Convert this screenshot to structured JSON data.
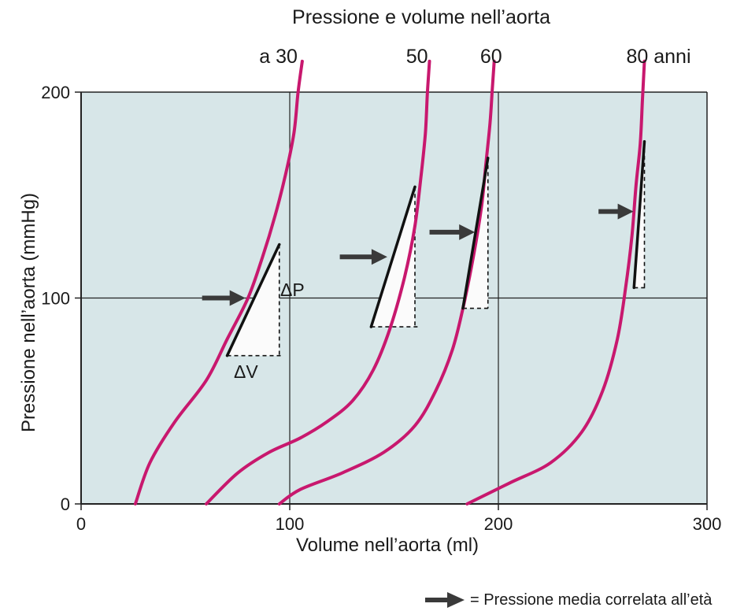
{
  "chart_data": {
    "type": "line",
    "title": "Pressione e volume nell’aorta",
    "xlabel": "Volume nell’aorta (ml)",
    "ylabel": "Pressione nell’aorta (mmHg)",
    "xlim": [
      0,
      300
    ],
    "ylim": [
      0,
      200
    ],
    "x_ticks": [
      0,
      100,
      200,
      300
    ],
    "y_ticks": [
      0,
      100,
      200
    ],
    "grid": true,
    "series": [
      {
        "name": "a 30",
        "color": "#c8186e",
        "points": [
          [
            26,
            0
          ],
          [
            33,
            20
          ],
          [
            45,
            40
          ],
          [
            60,
            60
          ],
          [
            70,
            80
          ],
          [
            80,
            100
          ],
          [
            87,
            120
          ],
          [
            93,
            140
          ],
          [
            98,
            160
          ],
          [
            102,
            180
          ],
          [
            104,
            200
          ],
          [
            106,
            215
          ]
        ]
      },
      {
        "name": "50",
        "color": "#c8186e",
        "points": [
          [
            60,
            0
          ],
          [
            75,
            15
          ],
          [
            90,
            25
          ],
          [
            105,
            32
          ],
          [
            118,
            40
          ],
          [
            130,
            50
          ],
          [
            140,
            65
          ],
          [
            148,
            85
          ],
          [
            155,
            110
          ],
          [
            160,
            135
          ],
          [
            163,
            160
          ],
          [
            165,
            180
          ],
          [
            166,
            200
          ],
          [
            167,
            215
          ]
        ]
      },
      {
        "name": "60",
        "color": "#c8186e",
        "points": [
          [
            95,
            0
          ],
          [
            105,
            7
          ],
          [
            125,
            15
          ],
          [
            145,
            25
          ],
          [
            160,
            38
          ],
          [
            170,
            55
          ],
          [
            178,
            75
          ],
          [
            183,
            95
          ],
          [
            188,
            120
          ],
          [
            192,
            145
          ],
          [
            194,
            165
          ],
          [
            196,
            185
          ],
          [
            197,
            200
          ],
          [
            198,
            215
          ]
        ]
      },
      {
        "name": "80 anni",
        "color": "#c8186e",
        "points": [
          [
            185,
            0
          ],
          [
            205,
            10
          ],
          [
            225,
            20
          ],
          [
            240,
            35
          ],
          [
            250,
            55
          ],
          [
            257,
            80
          ],
          [
            261,
            105
          ],
          [
            264,
            130
          ],
          [
            266,
            155
          ],
          [
            268,
            175
          ],
          [
            269,
            195
          ],
          [
            270,
            215
          ]
        ]
      }
    ],
    "slope_segments": [
      {
        "curve": "a 30",
        "x": [
          70,
          95
        ],
        "y": [
          72,
          126
        ]
      },
      {
        "curve": "50",
        "x": [
          139,
          160
        ],
        "y": [
          86,
          154
        ]
      },
      {
        "curve": "60",
        "x": [
          183,
          195
        ],
        "y": [
          95,
          168
        ]
      },
      {
        "curve": "80 anni",
        "x": [
          265,
          270
        ],
        "y": [
          105,
          176
        ]
      }
    ],
    "arrows": [
      {
        "curve": "a 30",
        "x": [
          58,
          78
        ],
        "y": 100
      },
      {
        "curve": "50",
        "x": [
          124,
          146
        ],
        "y": 120
      },
      {
        "curve": "60",
        "x": [
          167,
          188
        ],
        "y": 132
      },
      {
        "curve": "80 anni",
        "x": [
          248,
          264
        ],
        "y": 142
      }
    ],
    "annotations": {
      "delta_p": "ΔP",
      "delta_v": "ΔV"
    },
    "legend": {
      "text": "= Pressione media correlata all’età",
      "position": "bottom-right"
    },
    "colors": {
      "plot_background": "#d7e6e8",
      "curve": "#c8186e",
      "slope": "#111111"
    }
  }
}
